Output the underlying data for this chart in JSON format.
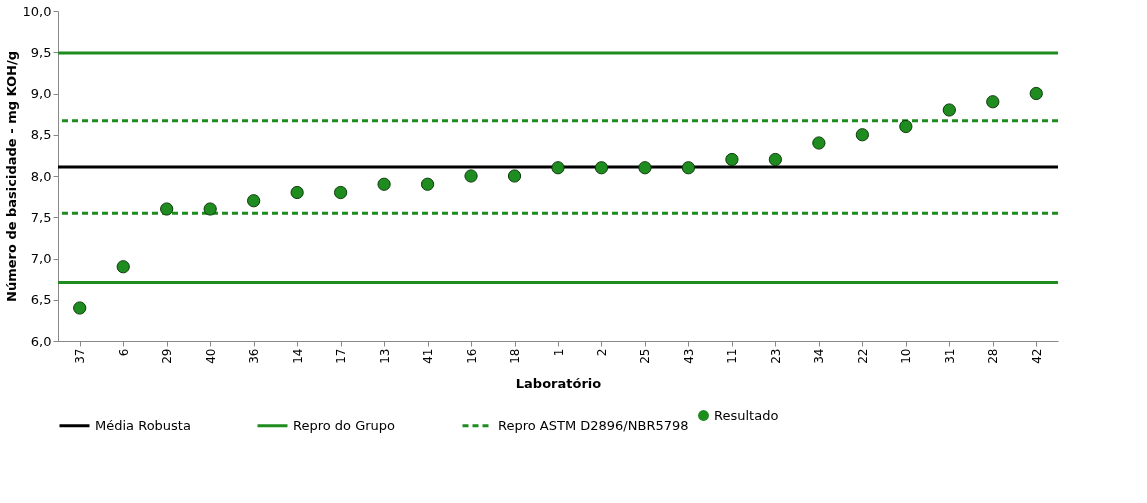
{
  "chart_data": {
    "type": "scatter",
    "xlabel": "Laboratório",
    "ylabel": "Número de basicidade - mg KOH/g",
    "categories": [
      "37",
      "6",
      "29",
      "40",
      "36",
      "14",
      "17",
      "13",
      "41",
      "16",
      "18",
      "1",
      "2",
      "25",
      "43",
      "11",
      "23",
      "34",
      "22",
      "10",
      "31",
      "28",
      "42"
    ],
    "series": [
      {
        "name": "Resultado",
        "color": "#1e8c1e",
        "values": [
          6.4,
          6.9,
          7.6,
          7.6,
          7.7,
          7.8,
          7.8,
          7.9,
          7.9,
          8.0,
          8.0,
          8.1,
          8.1,
          8.1,
          8.1,
          8.2,
          8.2,
          8.4,
          8.5,
          8.6,
          8.8,
          8.9,
          9.0
        ]
      }
    ],
    "ylim": [
      6,
      10
    ],
    "yticks": [
      {
        "value": 6,
        "label": "6,0"
      },
      {
        "value": 6.5,
        "label": "6,5"
      },
      {
        "value": 7,
        "label": "7,0"
      },
      {
        "value": 7.5,
        "label": "7,5"
      },
      {
        "value": 8,
        "label": "8,0"
      },
      {
        "value": 8.5,
        "label": "8,5"
      },
      {
        "value": 9,
        "label": "9,0"
      },
      {
        "value": 9.5,
        "label": "9,5"
      },
      {
        "value": 10,
        "label": "10,0"
      }
    ],
    "ref_lines": [
      {
        "axis": "y",
        "value": 8.11,
        "label": "Média Robusta",
        "color": "#000000",
        "line_style": "solid"
      },
      {
        "axis": "y",
        "value": 9.49,
        "label": "Repro do Grupo",
        "color": "#1e8c1e",
        "line_style": "solid"
      },
      {
        "axis": "y",
        "value": 6.71,
        "color": "#1e8c1e",
        "line_style": "solid"
      },
      {
        "axis": "y",
        "value": 8.67,
        "label": "Repro ASTM D2896/NBR5798",
        "color": "#1e8c1e",
        "line_style": "dashed"
      },
      {
        "axis": "y",
        "value": 7.55,
        "color": "#1e8c1e",
        "line_style": "dashed"
      }
    ],
    "grid": false,
    "legend": "bottom",
    "marker": "circle"
  }
}
